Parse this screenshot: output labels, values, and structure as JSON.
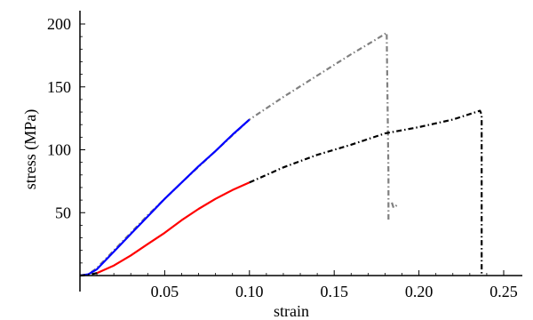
{
  "chart_data": {
    "type": "line",
    "title": "",
    "xlabel": "strain",
    "ylabel": "stress (MPa)",
    "xlim": [
      0,
      0.25
    ],
    "ylim": [
      0,
      210
    ],
    "x_ticks": [
      0.05,
      0.1,
      0.15,
      0.2,
      0.25
    ],
    "x_tick_labels": [
      "0.05",
      "0.10",
      "0.15",
      "0.20",
      "0.25"
    ],
    "y_ticks": [
      50,
      100,
      150,
      200
    ],
    "y_tick_labels": [
      "50",
      "100",
      "150",
      "200"
    ],
    "grid": false,
    "legend": "none",
    "series": [
      {
        "color": "#808080",
        "style": "dash-dot",
        "points": [
          [
            0,
            0
          ],
          [
            0.005,
            1
          ],
          [
            0.01,
            6
          ],
          [
            0.02,
            20
          ],
          [
            0.04,
            48
          ],
          [
            0.06,
            74
          ],
          [
            0.08,
            99
          ],
          [
            0.1,
            124
          ],
          [
            0.12,
            142
          ],
          [
            0.14,
            159
          ],
          [
            0.16,
            176
          ],
          [
            0.175,
            188
          ],
          [
            0.181,
            193
          ],
          [
            0.182,
            80
          ],
          [
            0.182,
            44
          ]
        ]
      },
      {
        "color": "#808080",
        "style": "dash-dot",
        "points": [
          [
            0.184,
            58
          ],
          [
            0.185,
            54
          ],
          [
            0.187,
            56
          ],
          [
            0.188,
            55
          ]
        ]
      },
      {
        "color": "#000000",
        "style": "dash-dot",
        "points": [
          [
            0.1,
            74
          ],
          [
            0.12,
            86
          ],
          [
            0.14,
            96
          ],
          [
            0.16,
            104
          ],
          [
            0.18,
            113
          ],
          [
            0.2,
            118
          ],
          [
            0.22,
            124
          ],
          [
            0.236,
            131
          ],
          [
            0.237,
            128
          ],
          [
            0.237,
            60
          ],
          [
            0.237,
            0
          ]
        ]
      },
      {
        "color": "#0000ff",
        "style": "solid",
        "points": [
          [
            0,
            0
          ],
          [
            0.005,
            1
          ],
          [
            0.01,
            5
          ],
          [
            0.015,
            12
          ],
          [
            0.02,
            19
          ],
          [
            0.03,
            33
          ],
          [
            0.04,
            47
          ],
          [
            0.05,
            61
          ],
          [
            0.06,
            74
          ],
          [
            0.07,
            87
          ],
          [
            0.08,
            99
          ],
          [
            0.09,
            112
          ],
          [
            0.1,
            124
          ]
        ]
      },
      {
        "color": "#ff0000",
        "style": "solid",
        "points": [
          [
            0.01,
            2
          ],
          [
            0.02,
            8
          ],
          [
            0.03,
            16
          ],
          [
            0.04,
            25
          ],
          [
            0.05,
            34
          ],
          [
            0.06,
            44
          ],
          [
            0.07,
            53
          ],
          [
            0.08,
            61
          ],
          [
            0.09,
            68
          ],
          [
            0.1,
            74
          ]
        ]
      },
      {
        "color": "#000000",
        "style": "dash-dot",
        "points": [
          [
            0,
            0
          ],
          [
            0.005,
            0.5
          ],
          [
            0.01,
            2
          ]
        ]
      }
    ]
  }
}
